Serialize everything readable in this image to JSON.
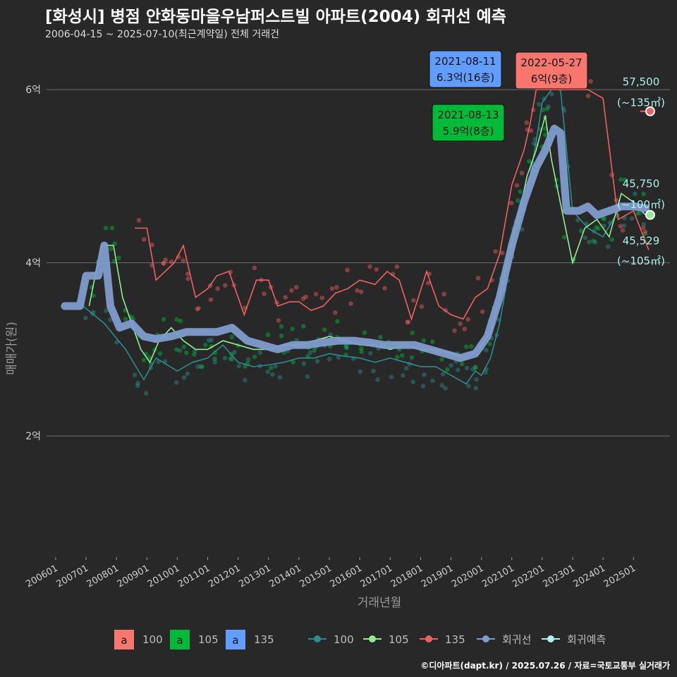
{
  "title": "[화성시] 병점 안화동마을우남퍼스트빌 아파트(2004) 회귀선 예측",
  "subtitle": "2006-04-15 ~ 2025-07-10(최근계약일) 전체 거래건",
  "caption": "©디아파트(dapt.kr) / 2025.07.26 / 자료=국토교통부 실거래가",
  "colors": {
    "bg": "#282828",
    "grid": "#6e6e6e",
    "s100": "#f8766d",
    "s105": "#00ba38",
    "s135": "#619cff",
    "line100": "#2a8c8c",
    "line105": "#90ee90",
    "line135": "#f0605e",
    "regression": "#7f9ccc",
    "forecast": "#aef0ee"
  },
  "chart_data": {
    "type": "line",
    "xlabel": "거래년월",
    "ylabel": "매매가(원)",
    "x_ticks": [
      "200601",
      "200701",
      "200801",
      "200901",
      "201001",
      "201101",
      "201201",
      "201301",
      "201401",
      "201501",
      "201601",
      "201701",
      "201801",
      "201901",
      "202001",
      "202101",
      "202201",
      "202301",
      "202401",
      "202501"
    ],
    "y_ticks": [
      {
        "value": 2,
        "label": "2억"
      },
      {
        "value": 4,
        "label": "4억"
      },
      {
        "value": 6,
        "label": "6억"
      }
    ],
    "ylim": [
      0.6,
      6.4
    ],
    "xlim": [
      2005.7,
      2026.2
    ],
    "series": [
      {
        "name": "100",
        "style": "line",
        "points": [
          [
            2006.9,
            3.5
          ],
          [
            2007.6,
            3.3
          ],
          [
            2008.3,
            3.0
          ],
          [
            2008.9,
            2.65
          ],
          [
            2009.3,
            2.9
          ],
          [
            2010.0,
            2.75
          ],
          [
            2010.5,
            2.85
          ],
          [
            2011.0,
            2.9
          ],
          [
            2011.5,
            3.05
          ],
          [
            2012.0,
            2.85
          ],
          [
            2012.5,
            2.8
          ],
          [
            2013.0,
            2.82
          ],
          [
            2013.5,
            2.85
          ],
          [
            2014.0,
            2.9
          ],
          [
            2014.5,
            2.9
          ],
          [
            2015.0,
            2.95
          ],
          [
            2015.5,
            2.92
          ],
          [
            2016.0,
            2.9
          ],
          [
            2016.5,
            2.85
          ],
          [
            2017.0,
            2.9
          ],
          [
            2017.5,
            2.85
          ],
          [
            2018.0,
            2.8
          ],
          [
            2018.5,
            2.8
          ],
          [
            2019.0,
            2.7
          ],
          [
            2019.5,
            2.6
          ],
          [
            2019.8,
            2.75
          ],
          [
            2020.0,
            2.7
          ],
          [
            2020.3,
            2.9
          ],
          [
            2020.6,
            3.3
          ],
          [
            2020.9,
            3.9
          ],
          [
            2021.2,
            4.4
          ],
          [
            2021.5,
            4.8
          ],
          [
            2021.8,
            5.4
          ],
          [
            2022.0,
            5.85
          ],
          [
            2022.3,
            6.0
          ],
          [
            2022.6,
            6.0
          ],
          [
            2023.0,
            4.6
          ],
          [
            2023.5,
            4.4
          ],
          [
            2024.0,
            4.3
          ],
          [
            2024.5,
            4.6
          ],
          [
            2025.0,
            4.7
          ],
          [
            2025.4,
            4.65
          ]
        ]
      },
      {
        "name": "105",
        "style": "line",
        "points": [
          [
            2007.1,
            3.5
          ],
          [
            2007.5,
            4.2
          ],
          [
            2007.9,
            4.2
          ],
          [
            2008.2,
            3.6
          ],
          [
            2008.5,
            3.3
          ],
          [
            2008.8,
            3.0
          ],
          [
            2009.1,
            2.85
          ],
          [
            2009.4,
            3.1
          ],
          [
            2009.8,
            3.25
          ],
          [
            2010.2,
            3.1
          ],
          [
            2010.6,
            3.0
          ],
          [
            2011.0,
            3.0
          ],
          [
            2011.5,
            3.1
          ],
          [
            2012.0,
            3.05
          ],
          [
            2012.5,
            3.0
          ],
          [
            2013.0,
            3.0
          ],
          [
            2013.5,
            3.05
          ],
          [
            2014.0,
            3.05
          ],
          [
            2014.5,
            3.1
          ],
          [
            2015.0,
            3.15
          ],
          [
            2015.5,
            3.1
          ],
          [
            2016.0,
            3.05
          ],
          [
            2016.5,
            3.05
          ],
          [
            2017.0,
            3.0
          ],
          [
            2017.5,
            3.05
          ],
          [
            2018.0,
            3.0
          ],
          [
            2018.5,
            3.0
          ],
          [
            2019.0,
            2.95
          ],
          [
            2019.5,
            2.9
          ],
          [
            2019.9,
            3.0
          ],
          [
            2020.3,
            3.2
          ],
          [
            2020.6,
            3.6
          ],
          [
            2020.9,
            4.1
          ],
          [
            2021.2,
            4.5
          ],
          [
            2021.5,
            5.0
          ],
          [
            2021.8,
            5.3
          ],
          [
            2022.1,
            5.7
          ],
          [
            2022.3,
            5.2
          ],
          [
            2023.0,
            4.0
          ],
          [
            2023.4,
            4.4
          ],
          [
            2023.8,
            4.5
          ],
          [
            2024.2,
            4.3
          ],
          [
            2024.6,
            4.8
          ],
          [
            2025.0,
            4.7
          ],
          [
            2025.4,
            4.55
          ]
        ]
      },
      {
        "name": "135",
        "style": "line",
        "points": [
          [
            2008.6,
            4.4
          ],
          [
            2009.0,
            4.4
          ],
          [
            2009.3,
            3.8
          ],
          [
            2009.6,
            3.9
          ],
          [
            2009.9,
            4.0
          ],
          [
            2010.2,
            4.2
          ],
          [
            2010.6,
            3.6
          ],
          [
            2011.0,
            3.7
          ],
          [
            2011.3,
            3.85
          ],
          [
            2011.7,
            3.9
          ],
          [
            2012.2,
            3.4
          ],
          [
            2012.6,
            3.8
          ],
          [
            2013.0,
            3.8
          ],
          [
            2013.3,
            3.5
          ],
          [
            2013.7,
            3.55
          ],
          [
            2014.0,
            3.55
          ],
          [
            2014.4,
            3.45
          ],
          [
            2014.8,
            3.5
          ],
          [
            2015.2,
            3.65
          ],
          [
            2015.6,
            3.7
          ],
          [
            2016.0,
            3.8
          ],
          [
            2016.5,
            3.75
          ],
          [
            2016.9,
            3.9
          ],
          [
            2017.3,
            3.8
          ],
          [
            2017.7,
            3.35
          ],
          [
            2018.2,
            3.9
          ],
          [
            2018.6,
            3.5
          ],
          [
            2019.0,
            3.4
          ],
          [
            2019.4,
            3.35
          ],
          [
            2019.8,
            3.6
          ],
          [
            2020.2,
            3.7
          ],
          [
            2020.6,
            4.1
          ],
          [
            2021.0,
            4.9
          ],
          [
            2021.4,
            5.3
          ],
          [
            2021.6,
            5.6
          ],
          [
            2021.8,
            6.0
          ],
          [
            2022.4,
            6.0
          ],
          [
            2023.0,
            6.0
          ],
          [
            2023.5,
            6.0
          ],
          [
            2024.0,
            5.9
          ],
          [
            2024.5,
            4.5
          ],
          [
            2025.0,
            4.6
          ],
          [
            2025.5,
            4.15
          ]
        ]
      },
      {
        "name": "회귀선",
        "style": "regression",
        "points": [
          [
            2006.3,
            3.5
          ],
          [
            2006.8,
            3.5
          ],
          [
            2007.0,
            3.85
          ],
          [
            2007.4,
            3.85
          ],
          [
            2007.6,
            4.2
          ],
          [
            2007.8,
            3.5
          ],
          [
            2008.1,
            3.25
          ],
          [
            2008.5,
            3.3
          ],
          [
            2008.9,
            3.15
          ],
          [
            2009.3,
            3.12
          ],
          [
            2009.8,
            3.15
          ],
          [
            2010.3,
            3.2
          ],
          [
            2010.8,
            3.2
          ],
          [
            2011.3,
            3.2
          ],
          [
            2011.8,
            3.25
          ],
          [
            2012.3,
            3.1
          ],
          [
            2012.8,
            3.05
          ],
          [
            2013.3,
            3.0
          ],
          [
            2013.8,
            3.05
          ],
          [
            2014.3,
            3.05
          ],
          [
            2014.8,
            3.08
          ],
          [
            2015.3,
            3.1
          ],
          [
            2015.8,
            3.1
          ],
          [
            2016.3,
            3.08
          ],
          [
            2016.8,
            3.05
          ],
          [
            2017.3,
            3.05
          ],
          [
            2017.8,
            3.05
          ],
          [
            2018.3,
            3.0
          ],
          [
            2018.8,
            2.95
          ],
          [
            2019.3,
            2.9
          ],
          [
            2019.8,
            2.95
          ],
          [
            2020.2,
            3.15
          ],
          [
            2020.6,
            3.6
          ],
          [
            2021.0,
            4.2
          ],
          [
            2021.4,
            4.7
          ],
          [
            2021.8,
            5.1
          ],
          [
            2022.1,
            5.3
          ],
          [
            2022.4,
            5.55
          ],
          [
            2022.6,
            5.5
          ],
          [
            2022.8,
            4.6
          ],
          [
            2023.2,
            4.6
          ],
          [
            2023.5,
            4.65
          ],
          [
            2023.8,
            4.55
          ],
          [
            2024.2,
            4.6
          ],
          [
            2024.6,
            4.65
          ],
          [
            2025.0,
            4.65
          ],
          [
            2025.4,
            4.63
          ]
        ]
      },
      {
        "name": "회귀예측",
        "style": "forecast",
        "points": [
          [
            2025.55,
            4.5529
          ],
          [
            2025.55,
            5.75
          ]
        ]
      }
    ],
    "legend_fill": [
      "100",
      "105",
      "135"
    ],
    "legend_fill_key": "a",
    "legend_lines": [
      "100",
      "105",
      "135",
      "회귀선",
      "회귀예측"
    ],
    "annotations": [
      {
        "date": "2021-08-11",
        "text": "6.3억(16층)",
        "color": "#619cff",
        "text_color": "#111111"
      },
      {
        "date": "2022-05-27",
        "text": "6억(9층)",
        "color": "#f8766d",
        "text_color": "#111111"
      },
      {
        "date": "2021-08-13",
        "text": "5.9억(8층)",
        "color": "#00ba38",
        "text_color": "#111111"
      }
    ],
    "end_labels": [
      {
        "value": "57,500",
        "area": "(~135㎡)",
        "y": 5.75,
        "color": "#f0605e"
      },
      {
        "value": "45,750",
        "area": "(~100㎡)",
        "y": 4.575,
        "color": "#2a8c8c"
      },
      {
        "value": "45,529",
        "area": "(~105㎡)",
        "y": 4.5529,
        "color": "#90ee90"
      }
    ]
  }
}
